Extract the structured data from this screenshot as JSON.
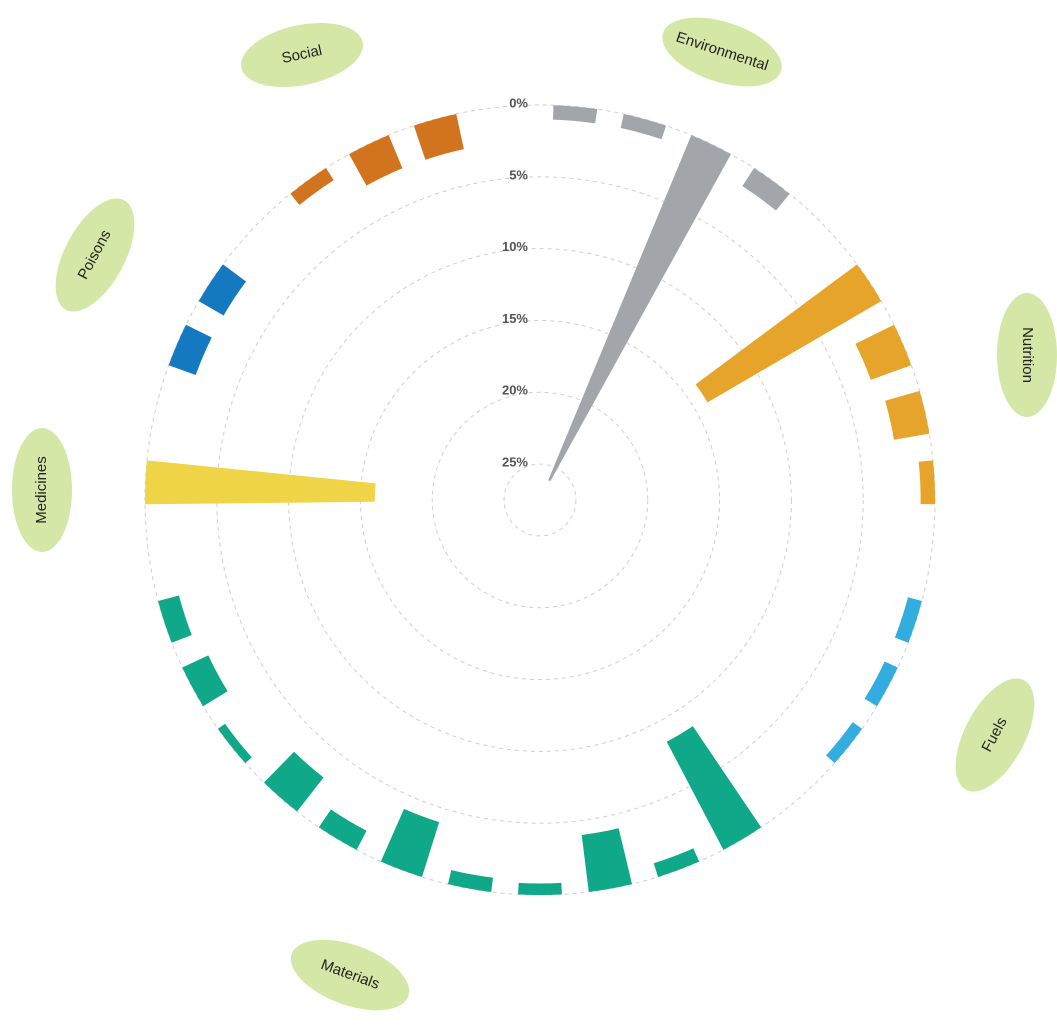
{
  "chart_data": {
    "type": "radial_bar",
    "rlim": [
      0,
      27.5
    ],
    "rticks": [
      {
        "value": 0,
        "label": "0%"
      },
      {
        "value": 5,
        "label": "5%"
      },
      {
        "value": 10,
        "label": "10%"
      },
      {
        "value": 15,
        "label": "15%"
      },
      {
        "value": 20,
        "label": "20%"
      },
      {
        "value": 25,
        "label": "25%"
      }
    ],
    "grid": true,
    "groups": [
      {
        "name": "Environmental",
        "color": "#a2a6ab",
        "values": [
          1,
          1,
          26,
          1.5
        ]
      },
      {
        "name": "Nutrition",
        "color": "#e6a52a",
        "values": [
          14,
          3,
          2.5,
          1
        ]
      },
      {
        "name": "Fuels",
        "color": "#33ace0",
        "values": [
          1,
          1,
          0.8
        ]
      },
      {
        "name": "Materials",
        "color": "#0fa888",
        "values": [
          8.5,
          1,
          4,
          0.8,
          1,
          4,
          1.5,
          3,
          0.6,
          2,
          1.5
        ]
      },
      {
        "name": "Medicines",
        "color": "#f0d447",
        "values": [
          16
        ]
      },
      {
        "name": "Poisons",
        "color": "#1479c0",
        "values": [
          2,
          2
        ]
      },
      {
        "name": "Social",
        "color": "#d2741e",
        "values": [
          1,
          2.5,
          2.5
        ]
      }
    ]
  }
}
